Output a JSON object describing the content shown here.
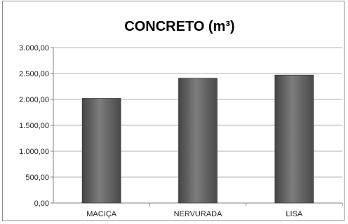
{
  "chart_data": {
    "type": "bar",
    "title": "CONCRETO (m³)",
    "xlabel": "",
    "ylabel": "",
    "categories": [
      "MACIÇA",
      "NERVURADA",
      "LISA"
    ],
    "values": [
      2020,
      2410,
      2470
    ],
    "ylim": [
      0,
      3000
    ],
    "yticks": [
      0,
      500,
      1000,
      1500,
      2000,
      2500,
      3000
    ],
    "ytick_labels": [
      "0,00",
      "500,00",
      "1.000,00",
      "1.500,00",
      "2.000,00",
      "2.500,00",
      "3.000,00"
    ],
    "grid": true,
    "legend": "none",
    "colors": {
      "bar_light": "#8a8a8a",
      "bar_dark": "#4a4a4a",
      "grid": "#b0b0b0",
      "axis": "#808080"
    }
  }
}
